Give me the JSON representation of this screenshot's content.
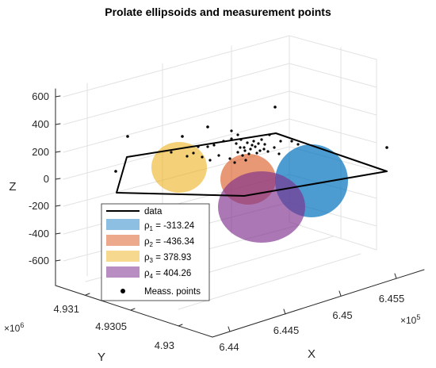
{
  "chart_data": {
    "type": "scatter",
    "title": "Prolate ellipsoids and measurement points",
    "xlabel": "X",
    "ylabel": "Y",
    "zlabel": "Z",
    "x_ticks": [
      "6.44",
      "6.445",
      "6.45",
      "6.455"
    ],
    "x_exponent_base": "×10",
    "x_exponent_power": "5",
    "y_ticks": [
      "4.931",
      "4.9305",
      "4.93"
    ],
    "y_exponent_base": "×10",
    "y_exponent_power": "6",
    "z_ticks": [
      "600",
      "400",
      "200",
      "0",
      "-200",
      "-400",
      "-600"
    ],
    "zlim": [
      -700,
      700
    ],
    "grid": true,
    "legend_position": "bottom-left",
    "series": [
      {
        "name": "data",
        "kind": "line",
        "color": "#000000"
      },
      {
        "name": "ρ",
        "subscript": "1",
        "value_text": " = -313.24",
        "kind": "ellipsoid",
        "color": "#0072BD"
      },
      {
        "name": "ρ",
        "subscript": "2",
        "value_text": " = -436.34",
        "kind": "ellipsoid",
        "color": "#D95319"
      },
      {
        "name": "ρ",
        "subscript": "3",
        "value_text": " = 378.93",
        "kind": "ellipsoid",
        "color": "#EDB120"
      },
      {
        "name": "ρ",
        "subscript": "4",
        "value_text": " = 404.26",
        "kind": "ellipsoid",
        "color": "#7E2F8E"
      },
      {
        "name": "Meass. points",
        "kind": "scatter",
        "color": "#000000"
      }
    ]
  }
}
